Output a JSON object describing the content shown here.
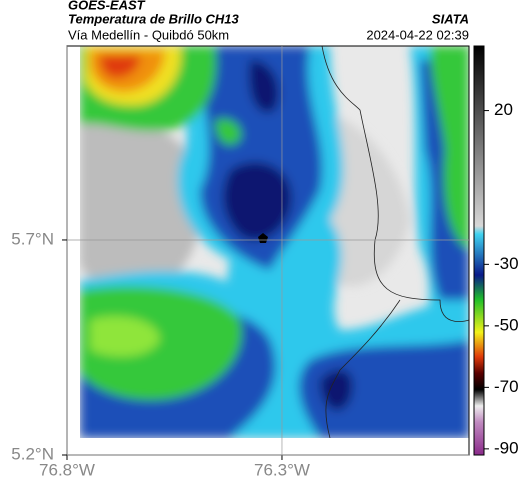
{
  "header": {
    "title": "GOES-EAST",
    "subtitle": "Temperatura de Brillo CH13",
    "location": "Vía Medellín - Quibdó 50km",
    "source": "SIATA",
    "datetime": "2024-04-22 02:39"
  },
  "map": {
    "xlim": [
      -76.8,
      -75.865
    ],
    "ylim": [
      5.2,
      6.151
    ],
    "xticks": [
      {
        "value": -76.8,
        "label": "76.8°W"
      },
      {
        "value": -76.3,
        "label": "76.3°W"
      }
    ],
    "yticks": [
      {
        "value": 5.2,
        "label": "5.2°N"
      },
      {
        "value": 5.7,
        "label": "5.7°N"
      }
    ]
  },
  "colorbar": {
    "lim": [
      -92,
      41
    ],
    "ticks": [
      20,
      -30,
      -50,
      -70,
      -90
    ]
  }
}
